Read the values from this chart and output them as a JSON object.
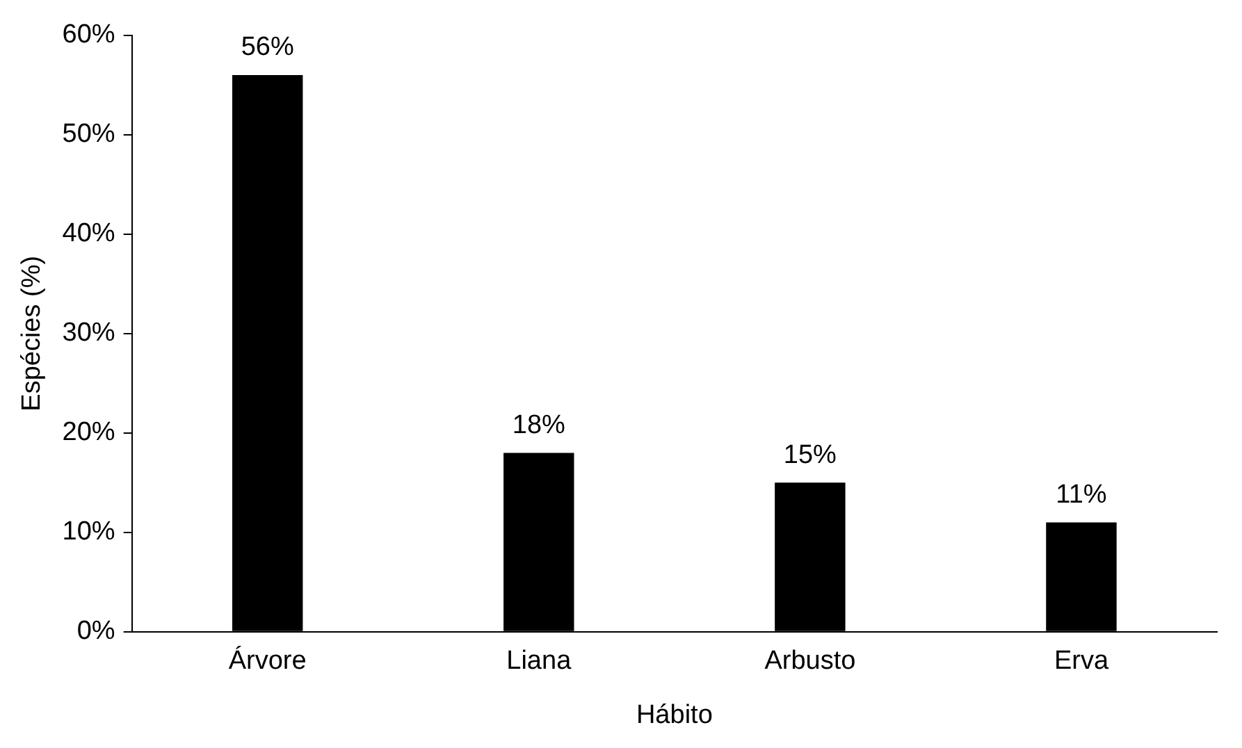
{
  "chart_data": {
    "type": "bar",
    "xlabel": "Hábito",
    "ylabel": "Espécies (%)",
    "categories": [
      "Árvore",
      "Liana",
      "Arbusto",
      "Erva"
    ],
    "values": [
      56,
      18,
      15,
      11
    ],
    "color": "#000000",
    "value_labels": [
      "56%",
      "18%",
      "15%",
      "11%"
    ],
    "ylim": [
      0,
      60
    ],
    "yticks": [
      {
        "value": 0,
        "label": "0%"
      },
      {
        "value": 10,
        "label": "10%"
      },
      {
        "value": 20,
        "label": "20%"
      },
      {
        "value": 30,
        "label": "30%"
      },
      {
        "value": 40,
        "label": "40%"
      },
      {
        "value": 50,
        "label": "50%"
      },
      {
        "value": 60,
        "label": "60%"
      }
    ],
    "grid": false,
    "legend": false
  }
}
